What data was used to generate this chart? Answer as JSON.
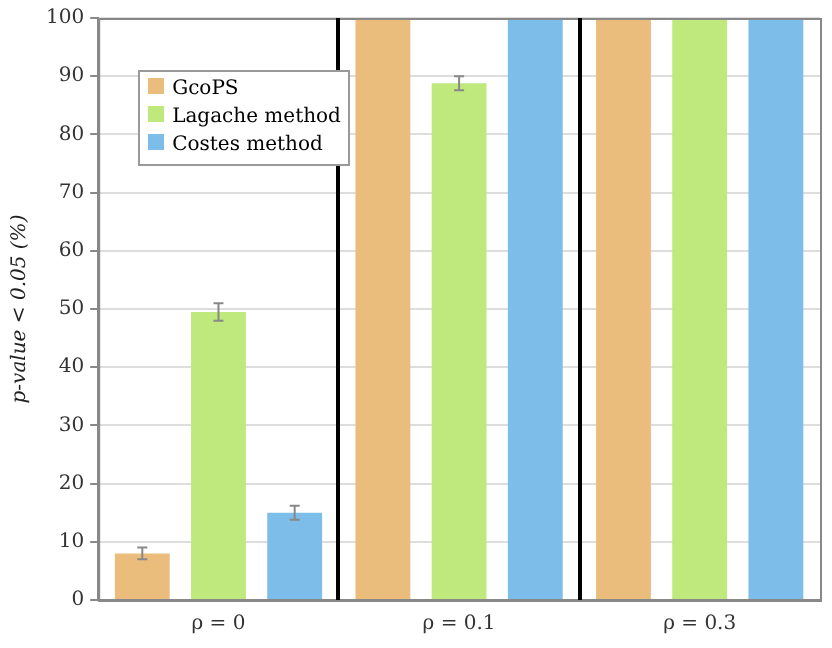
{
  "chart_data": {
    "type": "bar",
    "ylabel": "p-value < 0.05 (%)",
    "categories": [
      "ρ = 0",
      "ρ = 0.1",
      "ρ = 0.3"
    ],
    "series": [
      {
        "name": "GcoPS",
        "color": "#ebbd7d",
        "values": [
          8,
          100,
          100
        ],
        "errors": [
          1,
          null,
          null
        ]
      },
      {
        "name": "Lagache method",
        "color": "#bfe87d",
        "values": [
          49.5,
          88.8,
          100
        ],
        "errors": [
          1.5,
          1.2,
          null
        ]
      },
      {
        "name": "Costes method",
        "color": "#7dbde9",
        "values": [
          15,
          100,
          100
        ],
        "errors": [
          1.2,
          null,
          null
        ]
      }
    ],
    "ylim": [
      0,
      100
    ],
    "yticks": [
      0,
      10,
      20,
      30,
      40,
      50,
      60,
      70,
      80,
      90,
      100
    ],
    "grid": "y",
    "legend": "top left"
  }
}
